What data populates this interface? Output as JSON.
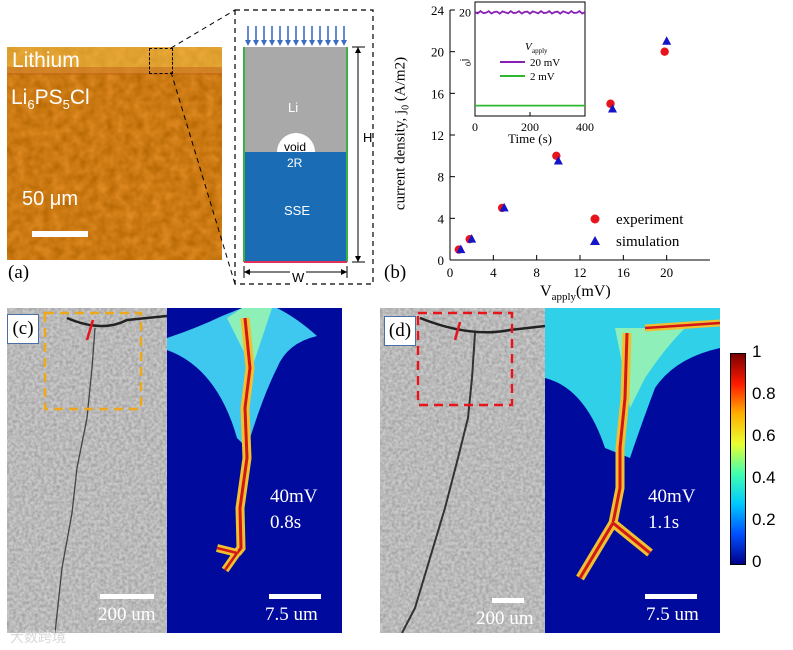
{
  "panel_a": {
    "label": "(a)",
    "text_lithium": "Lithium",
    "text_sse_Li": "Li",
    "text_sse_6": "6",
    "text_sse_PS": "PS",
    "text_sse_5": "5",
    "text_sse_Cl": "Cl",
    "scale_bar": "50 μm",
    "schematic": {
      "li": "Li",
      "void": "void",
      "two_r": "2R",
      "sse": "SSE",
      "h": "H",
      "w": "W"
    }
  },
  "panel_b": {
    "label": "(b)",
    "chart_data": {
      "type": "scatter",
      "xlabel_main": "V",
      "xlabel_sub": "apply",
      "xlabel_unit": "(mV)",
      "ylabel": "current density, j",
      "ylabel_sub": "0",
      "ylabel_unit": " (A/m2)",
      "xlim": [
        0,
        24
      ],
      "ylim": [
        0,
        24
      ],
      "xticks": [
        "0",
        "4",
        "8",
        "12",
        "16",
        "20"
      ],
      "yticks": [
        "0",
        "4",
        "8",
        "12",
        "16",
        "20",
        "24"
      ],
      "series": [
        {
          "name": "experiment",
          "color": "#e8141b",
          "marker": "circle",
          "x": [
            1,
            2,
            5,
            10,
            15,
            20
          ],
          "y": [
            1,
            2,
            5,
            10,
            15,
            20
          ]
        },
        {
          "name": "simulation",
          "color": "#1414c8",
          "marker": "triangle",
          "x": [
            1,
            2,
            5,
            10,
            15,
            20
          ],
          "y": [
            1,
            2,
            5,
            9.5,
            14.5,
            21
          ]
        }
      ],
      "legend": [
        "experiment",
        "simulation"
      ],
      "inset": {
        "xlabel": "Time (s)",
        "ylabel": "j",
        "ylabel_sub": "0",
        "xticks": [
          "0",
          "200",
          "400"
        ],
        "yticks": [
          "20"
        ],
        "xlim": [
          0,
          400
        ],
        "ylim": [
          0,
          22
        ],
        "legend_title_main": "V",
        "legend_title_sub": "apply",
        "series": [
          {
            "name": "20 mV",
            "color": "#8a1fb5",
            "value": 20.0
          },
          {
            "name": "2 mV",
            "color": "#2fb82f",
            "value": 2.0
          }
        ]
      }
    }
  },
  "panel_c": {
    "label": "(c)",
    "micro_scale": "200 um",
    "sim_scale": "7.5 um",
    "voltage": "40mV",
    "time": "0.8s"
  },
  "panel_d": {
    "label": "(d)",
    "micro_scale": "200 um",
    "sim_scale": "7.5 um",
    "voltage": "40mV",
    "time": "1.1s"
  },
  "colorbar": {
    "ticks": [
      "1",
      "0.8",
      "0.6",
      "0.4",
      "0.2",
      "0"
    ]
  },
  "watermark": "大数跨境"
}
